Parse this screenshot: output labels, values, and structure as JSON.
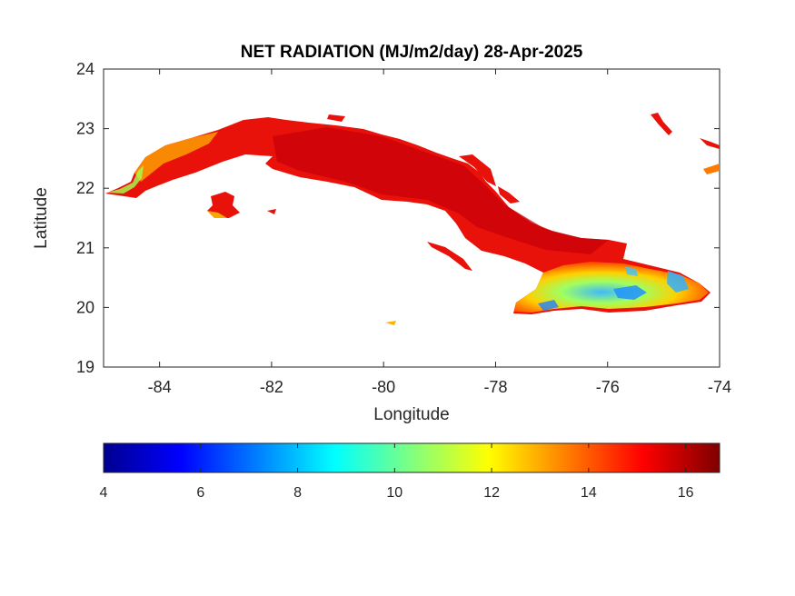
{
  "title": "NET RADIATION (MJ/m2/day) 28-Apr-2025",
  "xlabel": "Longitude",
  "ylabel": "Latitude",
  "map": {
    "xlim": [
      -85,
      -74
    ],
    "ylim": [
      19,
      24
    ],
    "xticks": [
      "-84",
      "-82",
      "-80",
      "-78",
      "-76",
      "-74"
    ],
    "yticks": [
      "19",
      "20",
      "21",
      "22",
      "23",
      "24"
    ],
    "region": "Cuba",
    "colors": {
      "low": "#00008f",
      "high": "#7f0000",
      "dominant": "#e0000a"
    }
  },
  "colorbar": {
    "range": [
      4,
      16.7
    ],
    "ticks": [
      "4",
      "6",
      "8",
      "10",
      "12",
      "14",
      "16"
    ],
    "colormap": "jet"
  }
}
